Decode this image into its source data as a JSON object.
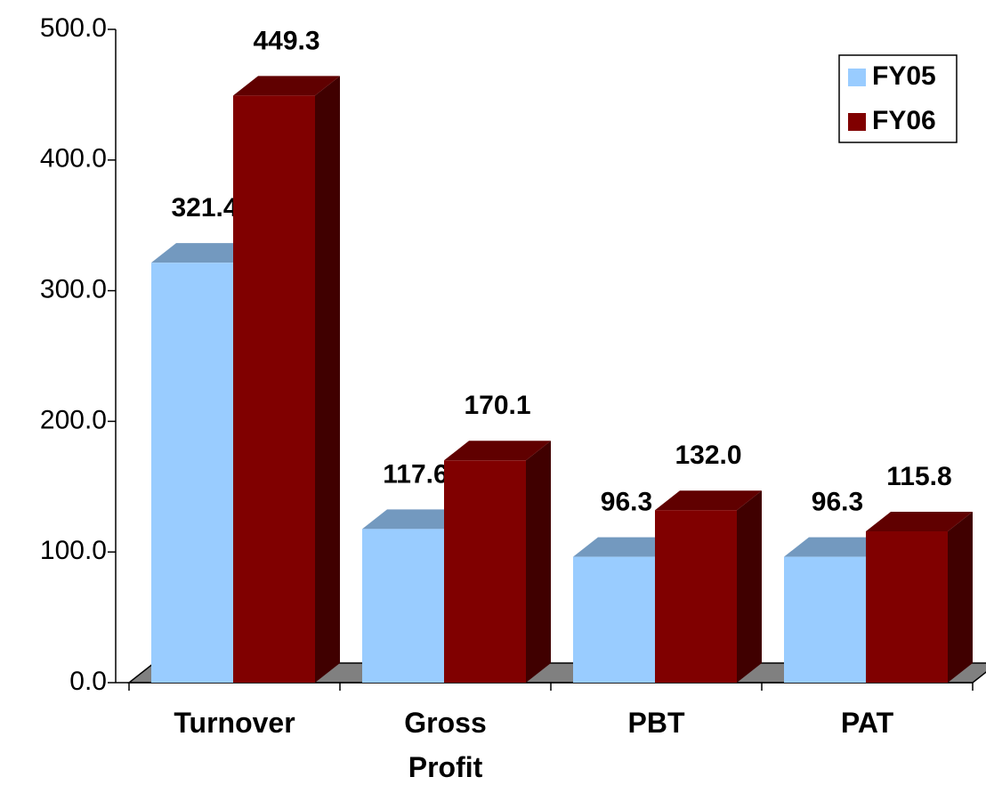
{
  "chart_data": {
    "type": "bar3d",
    "categories": [
      "Turnover",
      "Gross Profit",
      "PBT",
      "PAT"
    ],
    "series": [
      {
        "name": "FY05",
        "color": "#99ccff",
        "values": [
          321.4,
          117.6,
          96.3,
          96.3
        ],
        "value_labels": [
          "321.4",
          "117.6",
          "96.3",
          "96.3"
        ]
      },
      {
        "name": "FY06",
        "color": "#800000",
        "values": [
          449.3,
          170.1,
          132.0,
          115.8
        ],
        "value_labels": [
          "449.3",
          "170.1",
          "132.0",
          "115.8"
        ]
      }
    ],
    "ylim": [
      0,
      500
    ],
    "yticks": [
      {
        "value": 0,
        "label": "0.0"
      },
      {
        "value": 100,
        "label": "100.0"
      },
      {
        "value": 200,
        "label": "200.0"
      },
      {
        "value": 300,
        "label": "300.0"
      },
      {
        "value": 400,
        "label": "400.0"
      },
      {
        "value": 500,
        "label": "500.0"
      }
    ],
    "legend": "top-right"
  }
}
